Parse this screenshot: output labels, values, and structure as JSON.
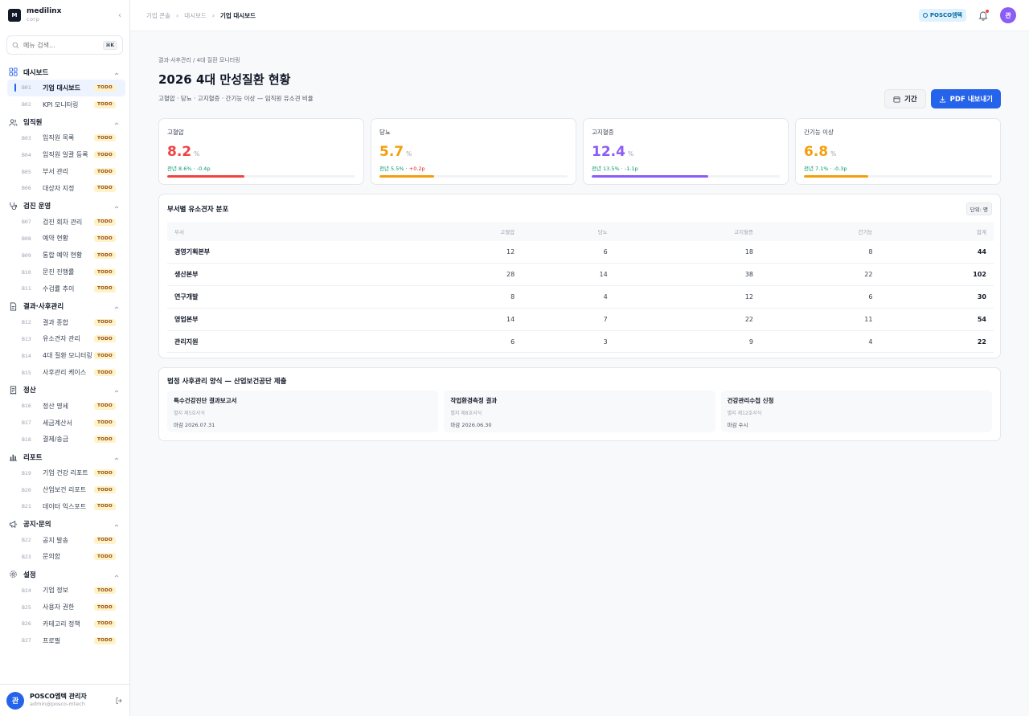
{
  "brand": {
    "logo": "M",
    "name": "medilinx",
    "sub": "corp"
  },
  "search": {
    "placeholder": "메뉴 검색...",
    "shortcut": "⌘K"
  },
  "sidebar": {
    "groups": [
      {
        "label": "대시보드",
        "icon": "grid-icon",
        "items": [
          {
            "num": "B01",
            "label": "기업 대시보드",
            "badge": "TODO",
            "active": true
          },
          {
            "num": "B02",
            "label": "KPI 모니터링",
            "badge": "TODO"
          }
        ]
      },
      {
        "label": "임직원",
        "icon": "users-icon",
        "items": [
          {
            "num": "B03",
            "label": "임직원 목록",
            "badge": "TODO"
          },
          {
            "num": "B04",
            "label": "임직원 일괄 등록",
            "badge": "TODO"
          },
          {
            "num": "B05",
            "label": "부서 관리",
            "badge": "TODO"
          },
          {
            "num": "B06",
            "label": "대상자 지정",
            "badge": "TODO"
          }
        ]
      },
      {
        "label": "검진 운영",
        "icon": "stethoscope-icon",
        "items": [
          {
            "num": "B07",
            "label": "검진 회차 관리",
            "badge": "TODO"
          },
          {
            "num": "B08",
            "label": "예약 현황",
            "badge": "TODO"
          },
          {
            "num": "B09",
            "label": "통합 예약 현황",
            "badge": "TODO"
          },
          {
            "num": "B10",
            "label": "문진 진행률",
            "badge": "TODO"
          },
          {
            "num": "B11",
            "label": "수검률 추이",
            "badge": "TODO"
          }
        ]
      },
      {
        "label": "결과·사후관리",
        "icon": "file-icon",
        "items": [
          {
            "num": "B12",
            "label": "결과 종합",
            "badge": "TODO"
          },
          {
            "num": "B13",
            "label": "유소견자 관리",
            "badge": "TODO"
          },
          {
            "num": "B14",
            "label": "4대 질환 모니터링",
            "badge": "TODO"
          },
          {
            "num": "B15",
            "label": "사후관리 케이스",
            "badge": "TODO"
          }
        ]
      },
      {
        "label": "정산",
        "icon": "receipt-icon",
        "items": [
          {
            "num": "B16",
            "label": "정산 명세",
            "badge": "TODO"
          },
          {
            "num": "B17",
            "label": "세금계산서",
            "badge": "TODO"
          },
          {
            "num": "B18",
            "label": "결제/송금",
            "badge": "TODO"
          }
        ]
      },
      {
        "label": "리포트",
        "icon": "bar-chart-icon",
        "items": [
          {
            "num": "B19",
            "label": "기업 건강 리포트",
            "badge": "TODO"
          },
          {
            "num": "B20",
            "label": "산업보건 리포트",
            "badge": "TODO"
          },
          {
            "num": "B21",
            "label": "데이터 익스포트",
            "badge": "TODO"
          }
        ]
      },
      {
        "label": "공지·문의",
        "icon": "megaphone-icon",
        "items": [
          {
            "num": "B22",
            "label": "공지 발송",
            "badge": "TODO"
          },
          {
            "num": "B23",
            "label": "문의함",
            "badge": "TODO"
          }
        ]
      },
      {
        "label": "설정",
        "icon": "gear-icon",
        "items": [
          {
            "num": "B24",
            "label": "기업 정보",
            "badge": "TODO"
          },
          {
            "num": "B25",
            "label": "사용자 권한",
            "badge": "TODO"
          },
          {
            "num": "B26",
            "label": "카테고리 정책",
            "badge": "TODO"
          },
          {
            "num": "B27",
            "label": "프로필",
            "badge": "TODO"
          }
        ]
      }
    ]
  },
  "user": {
    "avatar": "관",
    "name": "POSCO엠텍 관리자",
    "email": "admin@posco-mtech"
  },
  "topbar": {
    "crumbs": [
      "기업 콘솔",
      "대시보드"
    ],
    "current": "기업 대시보드",
    "tenant": "POSCO엠텍",
    "avatar": "관"
  },
  "page": {
    "breadcrumb": "결과·사후관리 / 4대 질환 모니터링",
    "title": "2026 4대 만성질환 현황",
    "description": "고혈압 · 당뇨 · 고지혈증 · 간기능 이상 — 임직원 유소견 비율",
    "period_button": "기간",
    "export_button": "PDF 내보내기"
  },
  "kpis": [
    {
      "label": "고혈압",
      "value": "8.2",
      "unit": "%",
      "prev": "전년 8.6%",
      "delta": "· -0.4p",
      "worse": false,
      "color": "#ef4444",
      "fill": 0.41
    },
    {
      "label": "당뇨",
      "value": "5.7",
      "unit": "%",
      "prev": "전년 5.5%",
      "delta": "· +0.2p",
      "worse": true,
      "color": "#f59e0b",
      "fill": 0.29
    },
    {
      "label": "고지혈증",
      "value": "12.4",
      "unit": "%",
      "prev": "전년 13.5%",
      "delta": "· -1.1p",
      "worse": false,
      "color": "#8b5cf6",
      "fill": 0.62
    },
    {
      "label": "간기능 이상",
      "value": "6.8",
      "unit": "%",
      "prev": "전년 7.1%",
      "delta": "· -0.3p",
      "worse": false,
      "color": "#f59e0b",
      "fill": 0.34
    }
  ],
  "dept_table": {
    "title": "부서별 유소견자 분포",
    "unit": "단위: 명",
    "headers": [
      "부서",
      "고혈압",
      "당뇨",
      "고지혈증",
      "간기능",
      "합계"
    ],
    "rows": [
      [
        "경영기획본부",
        "12",
        "6",
        "18",
        "8",
        "44"
      ],
      [
        "생산본부",
        "28",
        "14",
        "38",
        "22",
        "102"
      ],
      [
        "연구개발",
        "8",
        "4",
        "12",
        "6",
        "30"
      ],
      [
        "영업본부",
        "14",
        "7",
        "22",
        "11",
        "54"
      ],
      [
        "관리지원",
        "6",
        "3",
        "9",
        "4",
        "22"
      ]
    ]
  },
  "forms": {
    "title": "법정 사후관리 양식 — 산업보건공단 제출",
    "items": [
      {
        "title": "특수건강진단 결과보고서",
        "sub": "별지 제5호서식",
        "deadline": "마감 2026.07.31"
      },
      {
        "title": "작업환경측정 결과",
        "sub": "별지 제8호서식",
        "deadline": "마감 2026.06.30"
      },
      {
        "title": "건강관리수첩 신청",
        "sub": "별지 제12호서식",
        "deadline": "마감 수시"
      }
    ]
  }
}
